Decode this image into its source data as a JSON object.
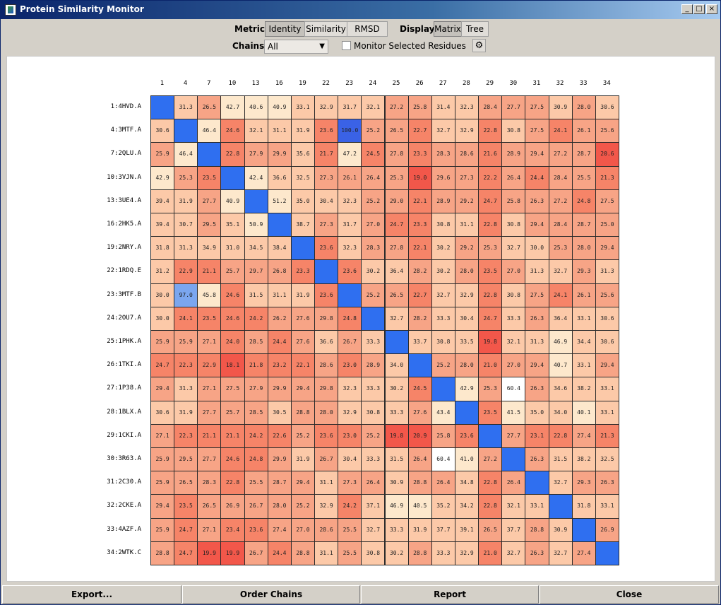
{
  "window": {
    "title": "Protein Similarity Monitor"
  },
  "toolbar": {
    "metric_label": "Metric:",
    "metric_options": [
      "Identity",
      "Similarity",
      "RMSD"
    ],
    "metric_selected": "Identity",
    "display_label": "Display:",
    "display_options": [
      "Matrix",
      "Tree"
    ],
    "display_selected": "Matrix",
    "chains_label": "Chains:",
    "chains_value": "All",
    "monitor_label": "Monitor Selected Residues",
    "monitor_checked": false,
    "settings_icon": "gear-icon"
  },
  "matrix": {
    "columns": [
      "1",
      "4",
      "7",
      "10",
      "13",
      "16",
      "19",
      "22",
      "23",
      "24",
      "25",
      "26",
      "27",
      "28",
      "29",
      "30",
      "31",
      "32",
      "33",
      "34"
    ],
    "rows": [
      "1:4HVD.A",
      "4:3MTF.A",
      "7:2QLU.A",
      "10:3VJN.A",
      "13:3UE4.A",
      "16:2HK5.A",
      "19:2NRY.A",
      "22:1RDQ.E",
      "23:3MTF.B",
      "24:2OU7.A",
      "25:1PHK.A",
      "26:1TKI.A",
      "27:1P38.A",
      "28:1BLX.A",
      "29:1CKI.A",
      "30:3R63.A",
      "31:2C30.A",
      "32:2CKE.A",
      "33:4AZF.A",
      "34:2WTK.C"
    ],
    "values": [
      [
        null,
        "31.3",
        "26.5",
        "42.7",
        "40.6",
        "40.9",
        "33.1",
        "32.9",
        "31.7",
        "32.1",
        "27.2",
        "25.8",
        "31.4",
        "32.3",
        "28.4",
        "27.7",
        "27.5",
        "30.9",
        "28.0",
        "30.6"
      ],
      [
        "30.6",
        null,
        "46.4",
        "24.6",
        "32.1",
        "31.1",
        "31.9",
        "23.6",
        "100.0",
        "25.2",
        "26.5",
        "22.7",
        "32.7",
        "32.9",
        "22.8",
        "30.8",
        "27.5",
        "24.1",
        "26.1",
        "25.6"
      ],
      [
        "25.9",
        "46.4",
        null,
        "22.8",
        "27.9",
        "29.9",
        "35.6",
        "21.7",
        "47.2",
        "24.5",
        "27.8",
        "23.3",
        "28.3",
        "28.6",
        "21.6",
        "28.9",
        "29.4",
        "27.2",
        "28.7",
        "20.6"
      ],
      [
        "42.9",
        "25.3",
        "23.5",
        null,
        "42.4",
        "36.6",
        "32.5",
        "27.3",
        "26.1",
        "26.4",
        "25.3",
        "19.0",
        "29.6",
        "27.3",
        "22.2",
        "26.4",
        "24.4",
        "28.4",
        "25.5",
        "21.3"
      ],
      [
        "39.4",
        "31.9",
        "27.7",
        "40.9",
        null,
        "51.2",
        "35.0",
        "30.4",
        "32.3",
        "25.2",
        "29.0",
        "22.1",
        "28.9",
        "29.2",
        "24.7",
        "25.8",
        "26.3",
        "27.2",
        "24.8",
        "27.5"
      ],
      [
        "39.4",
        "30.7",
        "29.5",
        "35.1",
        "50.9",
        null,
        "38.7",
        "27.3",
        "31.7",
        "27.0",
        "24.7",
        "23.3",
        "30.8",
        "31.1",
        "22.8",
        "30.8",
        "29.4",
        "28.4",
        "28.7",
        "25.0"
      ],
      [
        "31.8",
        "31.3",
        "34.9",
        "31.0",
        "34.5",
        "38.4",
        null,
        "23.6",
        "32.3",
        "28.3",
        "27.8",
        "22.1",
        "30.2",
        "29.2",
        "25.3",
        "32.7",
        "30.0",
        "25.3",
        "28.0",
        "29.4"
      ],
      [
        "31.2",
        "22.9",
        "21.1",
        "25.7",
        "29.7",
        "26.8",
        "23.3",
        null,
        "23.6",
        "30.2",
        "36.4",
        "28.2",
        "30.2",
        "28.0",
        "23.5",
        "27.0",
        "31.3",
        "32.7",
        "29.3",
        "31.3"
      ],
      [
        "30.0",
        "97.0",
        "45.8",
        "24.6",
        "31.5",
        "31.1",
        "31.9",
        "23.6",
        null,
        "25.2",
        "26.5",
        "22.7",
        "32.7",
        "32.9",
        "22.8",
        "30.8",
        "27.5",
        "24.1",
        "26.1",
        "25.6"
      ],
      [
        "30.0",
        "24.1",
        "23.5",
        "24.6",
        "24.2",
        "26.2",
        "27.6",
        "29.8",
        "24.8",
        null,
        "32.7",
        "28.2",
        "33.3",
        "30.4",
        "24.7",
        "33.3",
        "26.3",
        "36.4",
        "33.1",
        "30.6"
      ],
      [
        "25.9",
        "25.9",
        "27.1",
        "24.0",
        "28.5",
        "24.4",
        "27.6",
        "36.6",
        "26.7",
        "33.3",
        null,
        "33.7",
        "30.8",
        "33.5",
        "19.8",
        "32.1",
        "31.3",
        "46.9",
        "34.4",
        "30.6"
      ],
      [
        "24.7",
        "22.3",
        "22.9",
        "18.1",
        "21.8",
        "23.2",
        "22.1",
        "28.6",
        "23.0",
        "28.9",
        "34.0",
        null,
        "25.2",
        "28.0",
        "21.0",
        "27.0",
        "29.4",
        "40.7",
        "33.1",
        "29.4"
      ],
      [
        "29.4",
        "31.3",
        "27.1",
        "27.5",
        "27.9",
        "29.9",
        "29.4",
        "29.8",
        "32.3",
        "33.3",
        "30.2",
        "24.5",
        null,
        "42.9",
        "25.3",
        "60.4",
        "26.3",
        "34.6",
        "38.2",
        "33.1"
      ],
      [
        "30.6",
        "31.9",
        "27.7",
        "25.7",
        "28.5",
        "30.5",
        "28.8",
        "28.0",
        "32.9",
        "30.8",
        "33.3",
        "27.6",
        "43.4",
        null,
        "23.5",
        "41.5",
        "35.0",
        "34.0",
        "40.1",
        "33.1"
      ],
      [
        "27.1",
        "22.3",
        "21.1",
        "21.1",
        "24.2",
        "22.6",
        "25.2",
        "23.6",
        "23.0",
        "25.2",
        "19.8",
        "20.9",
        "25.8",
        "23.6",
        null,
        "27.7",
        "23.1",
        "22.8",
        "27.4",
        "21.3"
      ],
      [
        "25.9",
        "29.5",
        "27.7",
        "24.6",
        "24.8",
        "29.9",
        "31.9",
        "26.7",
        "30.4",
        "33.3",
        "31.5",
        "26.4",
        "60.4",
        "41.0",
        "27.2",
        null,
        "26.3",
        "31.5",
        "38.2",
        "32.5"
      ],
      [
        "25.9",
        "26.5",
        "28.3",
        "22.8",
        "25.5",
        "28.7",
        "29.4",
        "31.1",
        "27.3",
        "26.4",
        "30.9",
        "28.8",
        "26.4",
        "34.8",
        "22.8",
        "26.4",
        null,
        "32.7",
        "29.3",
        "26.3"
      ],
      [
        "29.4",
        "23.5",
        "26.5",
        "26.9",
        "26.7",
        "28.0",
        "25.2",
        "32.9",
        "24.2",
        "37.1",
        "46.9",
        "40.5",
        "35.2",
        "34.2",
        "22.8",
        "32.1",
        "33.1",
        null,
        "31.8",
        "33.1"
      ],
      [
        "25.9",
        "24.7",
        "27.1",
        "23.4",
        "23.6",
        "27.4",
        "27.0",
        "28.6",
        "25.5",
        "32.7",
        "33.3",
        "31.9",
        "37.7",
        "39.1",
        "26.5",
        "37.7",
        "28.8",
        "30.9",
        null,
        "26.9"
      ],
      [
        "28.8",
        "24.7",
        "19.9",
        "19.9",
        "26.7",
        "24.4",
        "28.8",
        "31.1",
        "25.5",
        "30.8",
        "30.2",
        "28.8",
        "33.3",
        "32.9",
        "21.0",
        "32.7",
        "26.3",
        "32.7",
        "27.4",
        null
      ]
    ],
    "colors": {
      "diagonal": "#2f6ff0",
      "identical": "#3a62e6",
      "near_identical": "#7ba6ef",
      "low": "#f2574a",
      "mid": "#f7a486",
      "high": "#fde8cc",
      "top": "#ffffff"
    }
  },
  "bottom": {
    "buttons": [
      "Export...",
      "Order Chains",
      "Report",
      "Close"
    ]
  }
}
